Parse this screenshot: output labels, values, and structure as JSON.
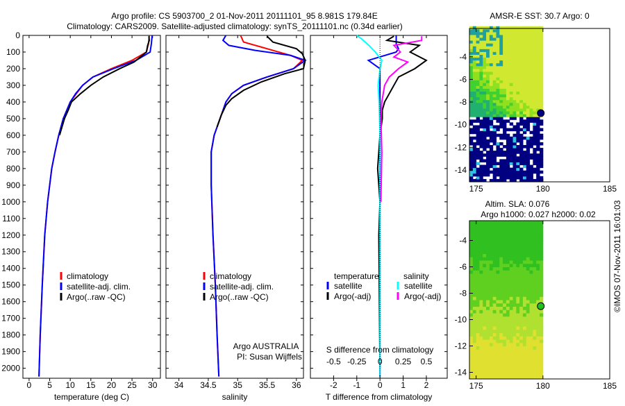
{
  "chart_data": [
    {
      "type": "line",
      "id": "temp",
      "title_line1": "Argo profile: CS 5903700_2 01-Nov-2011 20111101_95 8.981S 179.84E",
      "title_line2": "Climatology: CARS2009. Satellite-adjusted climatology: synTS_20111101.nc (0.34d earlier)",
      "xlabel": "temperature (deg C)",
      "xlim": [
        -1.5,
        31.9
      ],
      "ylim": [
        0,
        2060
      ],
      "xticks": [
        0,
        5,
        10,
        15,
        20,
        25,
        30
      ],
      "yticks": [
        0,
        100,
        200,
        300,
        400,
        500,
        600,
        700,
        800,
        900,
        1000,
        1100,
        1200,
        1300,
        1400,
        1500,
        1600,
        1700,
        1800,
        1900,
        2000
      ],
      "legend": [
        "climatology",
        "satellite-adj. clim.",
        "Argo(..raw -QC)"
      ],
      "series": [
        {
          "name": "climatology",
          "color": "#ff0000",
          "depth": [
            0,
            50,
            100,
            150,
            200,
            250,
            300,
            350,
            400,
            500,
            600,
            700,
            800,
            1000,
            1200,
            1500,
            1800,
            2050
          ],
          "values": [
            29.2,
            29.0,
            28.5,
            25,
            20,
            15.5,
            13,
            11.5,
            10,
            8.3,
            7.2,
            6.3,
            5.5,
            4.5,
            3.8,
            3.2,
            2.7,
            2.4
          ]
        },
        {
          "name": "satellite-adj. clim.",
          "color": "#0000ff",
          "depth": [
            0,
            50,
            100,
            150,
            200,
            250,
            300,
            350,
            400,
            500,
            600,
            700,
            800,
            1000,
            1200,
            1500,
            1800,
            2050
          ],
          "values": [
            29.9,
            29.7,
            29.4,
            26,
            20.5,
            15.5,
            13,
            11.3,
            10,
            8.3,
            7.2,
            6.3,
            5.5,
            4.5,
            3.8,
            3.2,
            2.7,
            2.4
          ]
        },
        {
          "name": "Argo(..raw -QC)",
          "color": "#000000",
          "depth": [
            5,
            30,
            60,
            100,
            130,
            160,
            200,
            250,
            300,
            350,
            400,
            450,
            500,
            600
          ],
          "values": [
            29.1,
            29.2,
            28.8,
            28.5,
            27,
            25.5,
            22,
            18,
            15,
            12.5,
            10.3,
            9.5,
            8.6,
            7.4
          ]
        }
      ]
    },
    {
      "type": "line",
      "id": "salt",
      "xlabel": "salinity",
      "xlim": [
        33.78,
        36.12
      ],
      "ylim": [
        0,
        2060
      ],
      "xticks": [
        34,
        34.5,
        35,
        35.5,
        36
      ],
      "legend": [
        "climatology",
        "satellite-adj. clim.",
        "Argo(..raw -QC)"
      ],
      "annotation1": "Argo AUSTRALIA",
      "annotation2": "PI: Susan Wijffels",
      "series": [
        {
          "name": "climatology",
          "color": "#ff0000",
          "depth": [
            0,
            40,
            80,
            120,
            150,
            200,
            250,
            300,
            350,
            400,
            500,
            600,
            700,
            900,
            1200,
            1500,
            1800,
            2050
          ],
          "values": [
            35.05,
            35.1,
            35.5,
            35.9,
            36.1,
            35.95,
            35.5,
            35.1,
            34.9,
            34.8,
            34.7,
            34.6,
            34.55,
            34.55,
            34.58,
            34.62,
            34.65,
            34.68
          ]
        },
        {
          "name": "satellite-adj. clim.",
          "color": "#0000ff",
          "depth": [
            0,
            30,
            60,
            90,
            120,
            150,
            200,
            250,
            300,
            350,
            400,
            500,
            600,
            700,
            900,
            1200,
            1500,
            1800,
            2050
          ],
          "values": [
            34.8,
            34.75,
            34.85,
            35.3,
            35.9,
            36.15,
            35.95,
            35.5,
            35.1,
            34.9,
            34.8,
            34.7,
            34.6,
            34.55,
            34.55,
            34.58,
            34.62,
            34.65,
            34.68
          ]
        },
        {
          "name": "Argo(..raw -QC)",
          "color": "#000000",
          "depth": [
            5,
            40,
            80,
            110,
            150,
            200,
            230,
            280,
            330,
            380,
            420,
            480,
            550
          ],
          "values": [
            35.5,
            35.6,
            36.0,
            36.1,
            36.15,
            36.12,
            35.8,
            35.4,
            35.1,
            34.9,
            34.8,
            34.72,
            34.65
          ]
        }
      ]
    },
    {
      "type": "line",
      "id": "diff",
      "xlabel": "T difference from climatology",
      "xlabel_top": "S difference from climatology",
      "xlim": [
        -3,
        2.9
      ],
      "ylim": [
        0,
        2060
      ],
      "xticks": [
        -2,
        -1,
        0,
        1,
        2
      ],
      "xticks_s": [
        -0.5,
        -0.25,
        0,
        0.25,
        0.5
      ],
      "xtick_s_labels": [
        "-0.5",
        "-0.25",
        "0",
        "0.25",
        "0.5"
      ],
      "s_scale": 4,
      "legend_t_title": "temperature",
      "legend_s_title": "salinity",
      "legend": [
        "satellite",
        "Argo(-adj)",
        "satellite",
        "Argo(-adj)"
      ],
      "series": [
        {
          "name": "T satellite",
          "color": "#0000ff",
          "depth": [
            0,
            50,
            80,
            100,
            150,
            200,
            300,
            400,
            600,
            1000,
            2050
          ],
          "values": [
            0.7,
            0.7,
            0.8,
            0.7,
            -0.5,
            0,
            0,
            0,
            0,
            0,
            0
          ]
        },
        {
          "name": "T Argo(-adj)",
          "color": "#000000",
          "depth": [
            5,
            30,
            60,
            100,
            150,
            200,
            250,
            300,
            350,
            400,
            450,
            500,
            600,
            800,
            1000,
            1200,
            2000
          ],
          "values": [
            0.6,
            0.3,
            1.7,
            1.3,
            2.0,
            1.5,
            0.8,
            0.6,
            0.4,
            0.2,
            0.1,
            0.1,
            0,
            -0.1,
            0,
            -0.05,
            0
          ]
        },
        {
          "name": "S satellite",
          "color": "#00ffff",
          "depth": [
            0,
            20,
            60,
            100,
            150,
            200,
            300,
            400,
            600,
            1000,
            2050
          ],
          "values": [
            -0.25,
            -0.2,
            -0.12,
            -0.05,
            0.02,
            0,
            -0.02,
            -0.01,
            0,
            0,
            0
          ]
        },
        {
          "name": "S Argo(-adj)",
          "color": "#ff00ff",
          "depth": [
            5,
            30,
            60,
            100,
            130,
            160,
            200,
            250,
            300,
            400,
            500,
            700,
            1000
          ],
          "values": [
            0.45,
            0.45,
            0.15,
            0.22,
            0.15,
            0.3,
            0.2,
            0.1,
            0.05,
            0.02,
            0.01,
            0.02,
            0.01
          ]
        }
      ]
    },
    {
      "type": "heatmap",
      "id": "sst",
      "title": "AMSR-E SST: 30.7 Argo: 0",
      "xlim": [
        174.5,
        185
      ],
      "ylim": [
        -15.05,
        -1.5
      ],
      "xticks": [
        175,
        180,
        185
      ],
      "yticks": [
        -4,
        -6,
        -8,
        -10,
        -12,
        -14
      ],
      "argo": [
        179.84,
        -8.98
      ]
    },
    {
      "type": "heatmap",
      "id": "sla",
      "title_line1": "Altim. SLA: 0.076",
      "title_line2": "Argo h1000: 0.027 h2000: 0.02",
      "xlim": [
        174.5,
        185
      ],
      "ylim": [
        -14.5,
        -2.5
      ],
      "xticks": [
        175,
        180,
        185
      ],
      "yticks": [
        -4,
        -6,
        -8,
        -10,
        -12,
        -14
      ],
      "argo": [
        179.84,
        -8.98
      ]
    }
  ],
  "footer": {
    "credit": "©IMOS 07-Nov-2011 16:01:03"
  }
}
